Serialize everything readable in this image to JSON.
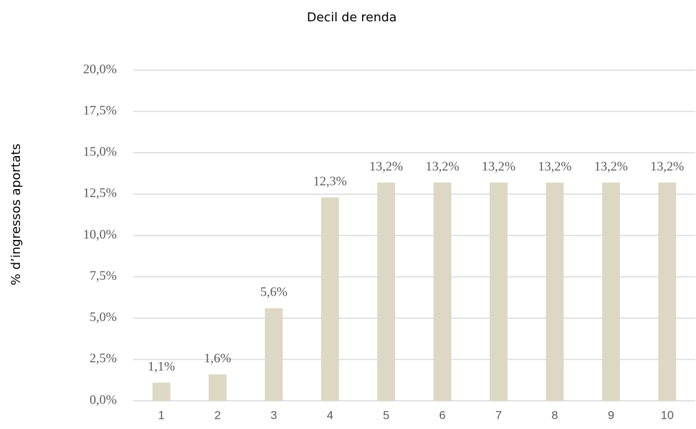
{
  "chart_data": {
    "type": "bar",
    "title": "Decil de renda",
    "y_label": "% d’ingressos aportats",
    "categories": [
      "1",
      "2",
      "3",
      "4",
      "5",
      "6",
      "7",
      "8",
      "9",
      "10"
    ],
    "values": [
      1.1,
      1.6,
      5.6,
      12.3,
      13.2,
      13.2,
      13.2,
      13.2,
      13.2,
      13.2
    ],
    "value_labels": [
      "1,1%",
      "1,6%",
      "5,6%",
      "12,3%",
      "13,2%",
      "13,2%",
      "13,2%",
      "13,2%",
      "13,2%",
      "13,2%"
    ],
    "color": "#ddd8c3",
    "ylim": [
      0,
      20
    ],
    "yticks": [
      {
        "value": 0,
        "label": "0,0%"
      },
      {
        "value": 2.5,
        "label": "2,5%"
      },
      {
        "value": 5,
        "label": "5,0%"
      },
      {
        "value": 7.5,
        "label": "7,5%"
      },
      {
        "value": 10,
        "label": "10,0%"
      },
      {
        "value": 12.5,
        "label": "12,5%"
      },
      {
        "value": 15,
        "label": "15,0%"
      },
      {
        "value": 17.5,
        "label": "17,5%"
      },
      {
        "value": 20,
        "label": "20,0%"
      }
    ],
    "grid": true
  }
}
